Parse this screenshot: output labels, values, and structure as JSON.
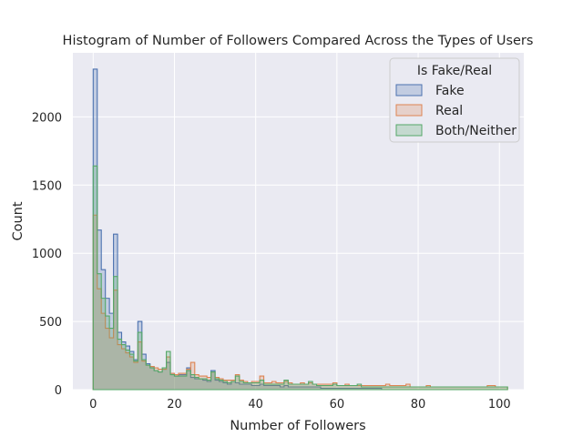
{
  "chart_data": {
    "type": "histogram",
    "title": "Histogram of Number of Followers Compared Across the Types of Users",
    "xlabel": "Number of Followers",
    "ylabel": "Count",
    "xlim": [
      -5,
      106
    ],
    "ylim": [
      0,
      2470
    ],
    "xticks": [
      0,
      20,
      40,
      60,
      80,
      100
    ],
    "yticks": [
      0,
      500,
      1000,
      1500,
      2000
    ],
    "grid": true,
    "legend": {
      "title": "Is Fake/Real",
      "position": "top-right"
    },
    "bin_width": 1,
    "bin_start": 0,
    "series": [
      {
        "name": "Fake",
        "color": "#4c72b0",
        "fill": "rgba(76,114,176,0.25)",
        "values": [
          2350,
          1170,
          880,
          670,
          560,
          1140,
          420,
          350,
          320,
          280,
          220,
          500,
          260,
          190,
          170,
          140,
          130,
          150,
          200,
          120,
          100,
          110,
          110,
          160,
          90,
          80,
          80,
          70,
          60,
          140,
          70,
          60,
          50,
          40,
          60,
          50,
          40,
          40,
          40,
          30,
          30,
          40,
          30,
          30,
          30,
          30,
          20,
          30,
          20,
          20,
          20,
          20,
          20,
          20,
          20,
          20,
          10,
          10,
          10,
          10,
          10,
          10,
          10,
          10,
          10,
          10,
          10,
          10,
          10,
          10,
          10,
          0,
          0,
          0,
          0,
          0,
          0,
          0,
          0,
          0,
          0,
          0,
          0,
          0,
          0,
          0,
          0,
          0,
          0,
          0,
          0,
          0,
          0,
          0,
          0,
          0,
          0,
          0,
          0,
          0,
          0,
          0
        ]
      },
      {
        "name": "Real",
        "color": "#dd8452",
        "fill": "rgba(221,132,82,0.25)",
        "values": [
          1280,
          740,
          560,
          450,
          380,
          730,
          330,
          300,
          270,
          240,
          200,
          350,
          210,
          180,
          170,
          160,
          150,
          150,
          240,
          120,
          110,
          120,
          120,
          150,
          200,
          110,
          100,
          100,
          90,
          130,
          90,
          80,
          70,
          70,
          70,
          110,
          70,
          60,
          50,
          60,
          60,
          100,
          50,
          50,
          60,
          50,
          50,
          60,
          50,
          40,
          40,
          50,
          40,
          50,
          40,
          40,
          40,
          40,
          40,
          50,
          30,
          30,
          40,
          30,
          30,
          30,
          30,
          30,
          30,
          30,
          30,
          30,
          40,
          30,
          30,
          30,
          30,
          40,
          20,
          20,
          20,
          20,
          30,
          20,
          20,
          20,
          20,
          20,
          20,
          20,
          20,
          20,
          20,
          20,
          20,
          20,
          20,
          30,
          30,
          20,
          20,
          20
        ]
      },
      {
        "name": "Both/Neither",
        "color": "#55a868",
        "fill": "rgba(85,168,104,0.25)",
        "values": [
          1640,
          850,
          670,
          540,
          450,
          830,
          370,
          330,
          290,
          260,
          210,
          420,
          220,
          180,
          160,
          140,
          130,
          160,
          280,
          110,
          100,
          100,
          100,
          140,
          110,
          90,
          80,
          80,
          70,
          130,
          80,
          70,
          60,
          50,
          60,
          100,
          60,
          50,
          50,
          50,
          50,
          70,
          40,
          40,
          40,
          40,
          40,
          70,
          40,
          40,
          40,
          40,
          40,
          60,
          40,
          30,
          30,
          30,
          30,
          40,
          30,
          30,
          30,
          30,
          30,
          40,
          20,
          20,
          20,
          20,
          20,
          20,
          20,
          20,
          20,
          20,
          20,
          20,
          20,
          20,
          20,
          20,
          20,
          20,
          20,
          20,
          20,
          20,
          20,
          20,
          20,
          20,
          20,
          20,
          20,
          20,
          20,
          20,
          20,
          20,
          20,
          20
        ]
      }
    ]
  }
}
